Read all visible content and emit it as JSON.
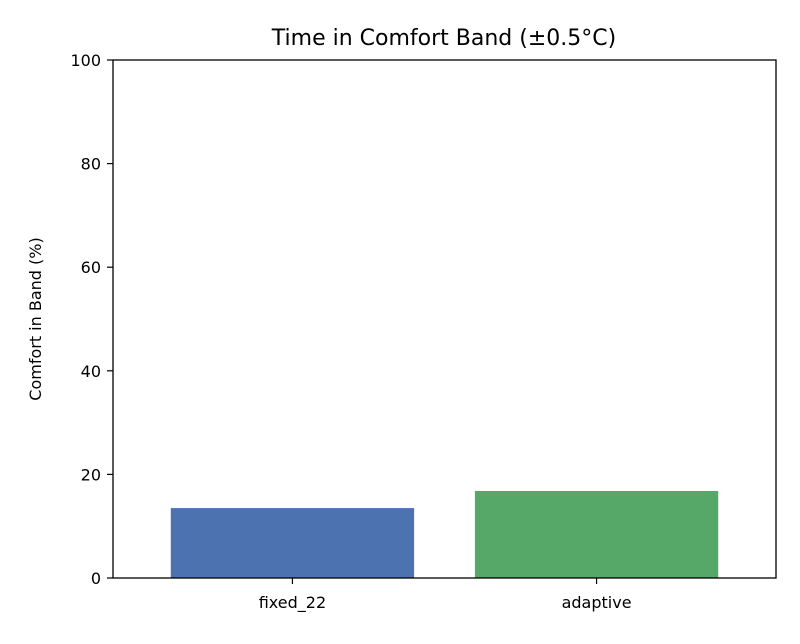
{
  "chart_data": {
    "type": "bar",
    "title": "Time in Comfort Band (±0.5°C)",
    "xlabel": "",
    "ylabel": "Comfort in Band (%)",
    "categories": [
      "fixed_22",
      "adaptive"
    ],
    "values": [
      13.5,
      16.8
    ],
    "bar_colors": [
      "#4c72b0",
      "#55a868"
    ],
    "ylim": [
      0,
      100
    ],
    "yticks": [
      "0",
      "20",
      "40",
      "60",
      "80",
      "100"
    ],
    "grid": false,
    "legend": "none"
  }
}
